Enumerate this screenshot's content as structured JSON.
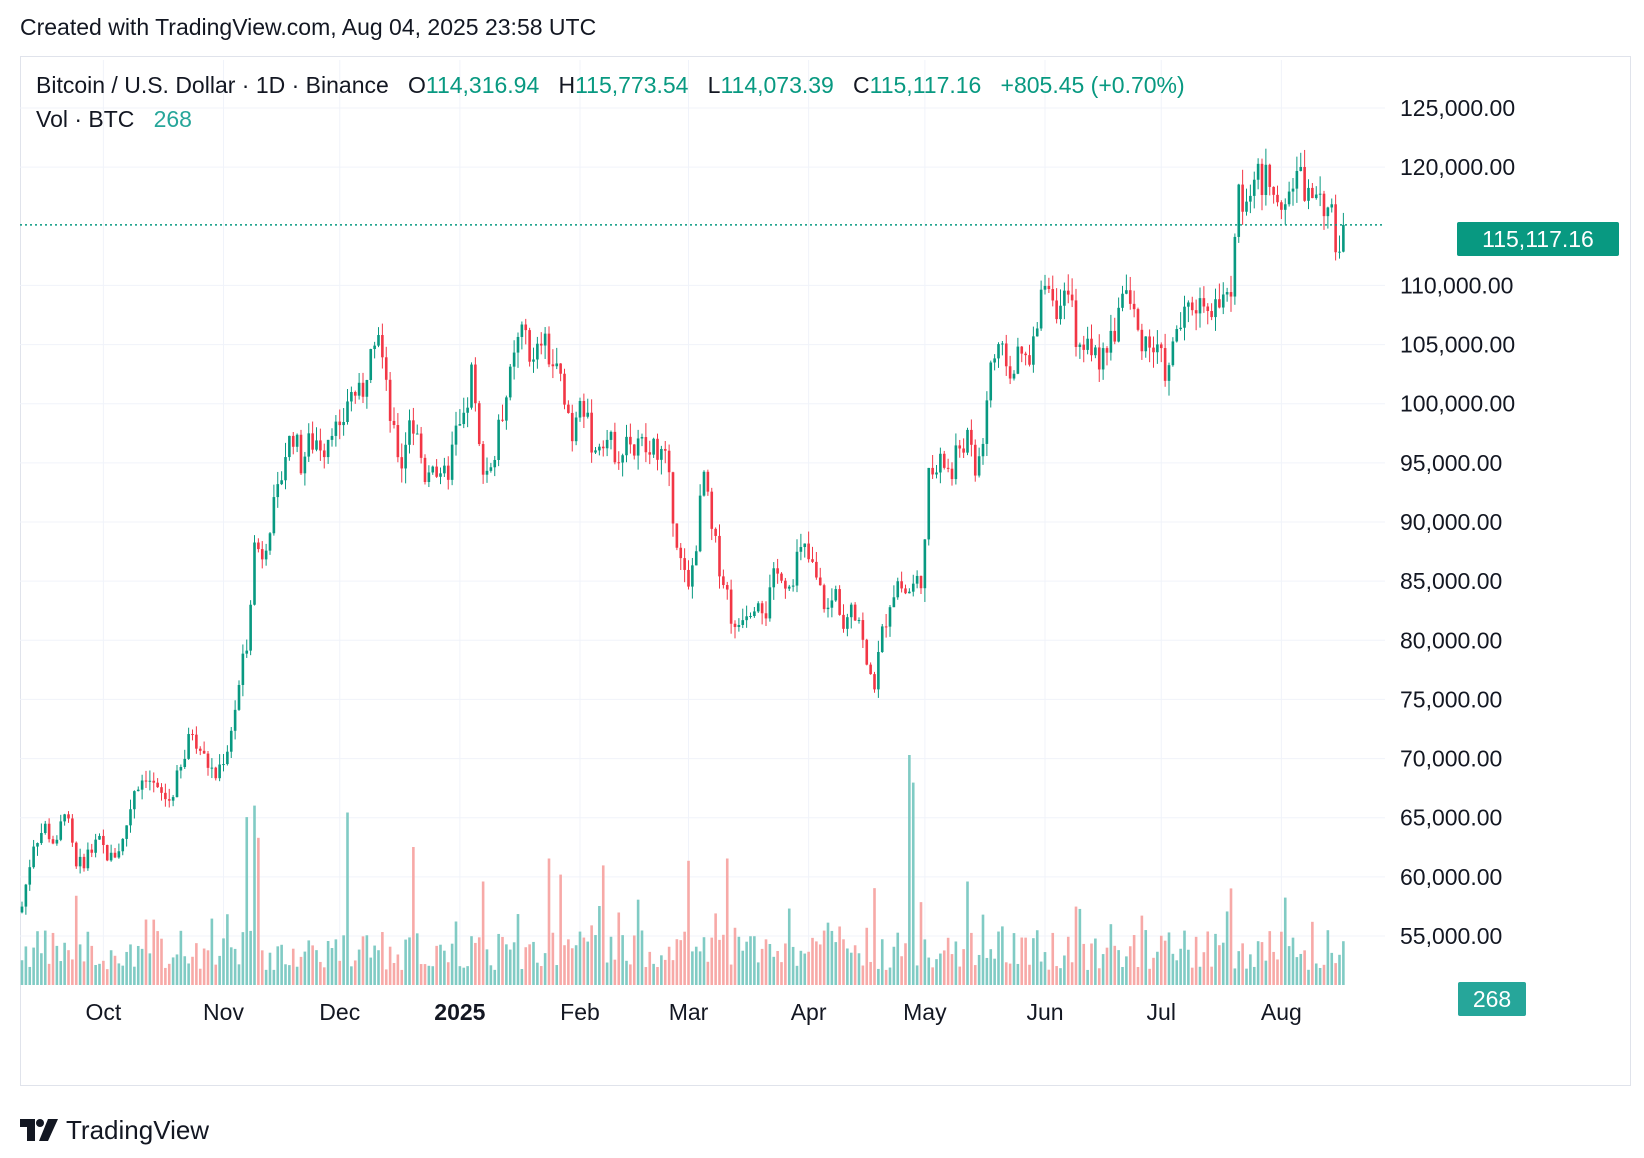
{
  "header": {
    "created_text": "Created with TradingView.com, Aug 04, 2025 23:58 UTC"
  },
  "legend": {
    "symbol": "Bitcoin / U.S. Dollar · 1D · Binance",
    "o_label": "O",
    "o_value": "114,316.94",
    "h_label": "H",
    "h_value": "115,773.54",
    "l_label": "L",
    "l_value": "114,073.39",
    "c_label": "C",
    "c_value": "115,117.16",
    "change": "+805.45 (+0.70%)",
    "vol_label": "Vol · BTC",
    "vol_value": "268"
  },
  "price_tag": "115,117.16",
  "volume_tag": "268",
  "brand": {
    "name": "TradingView"
  },
  "colors": {
    "up": "#089981",
    "down": "#f23645",
    "vol_up": "#80cbc4",
    "vol_down": "#f7a9a7",
    "grid": "#f0f3fa"
  },
  "chart_data": {
    "type": "candlestick",
    "title": "Bitcoin / U.S. Dollar · 1D · Binance",
    "y_ticks": [
      "125,000.00",
      "120,000.00",
      "110,000.00",
      "105,000.00",
      "100,000.00",
      "95,000.00",
      "90,000.00",
      "85,000.00",
      "80,000.00",
      "75,000.00",
      "70,000.00",
      "65,000.00",
      "60,000.00",
      "55,000.00"
    ],
    "y_tick_values": [
      125000,
      120000,
      110000,
      105000,
      100000,
      95000,
      90000,
      85000,
      80000,
      75000,
      70000,
      65000,
      60000,
      55000
    ],
    "ylim": [
      53000,
      127500
    ],
    "x_ticks": [
      {
        "label": "Oct",
        "index": 0,
        "bold": false
      },
      {
        "label": "Nov",
        "index": 1,
        "bold": false
      },
      {
        "label": "Dec",
        "index": 2,
        "bold": false
      },
      {
        "label": "2025",
        "index": 3,
        "bold": true
      },
      {
        "label": "Feb",
        "index": 4,
        "bold": false
      },
      {
        "label": "Mar",
        "index": 5,
        "bold": false
      },
      {
        "label": "Apr",
        "index": 6,
        "bold": false
      },
      {
        "label": "May",
        "index": 7,
        "bold": false
      },
      {
        "label": "Jun",
        "index": 8,
        "bold": false
      },
      {
        "label": "Jul",
        "index": 9,
        "bold": false
      },
      {
        "label": "Aug",
        "index": 10,
        "bold": false
      }
    ],
    "x_tick_day": [
      21,
      52,
      82,
      113,
      144,
      172,
      203,
      233,
      264,
      294,
      325
    ],
    "last_close": 115117.16,
    "close_path": [
      [
        0,
        57500
      ],
      [
        3,
        63000
      ],
      [
        6,
        64200
      ],
      [
        9,
        62500
      ],
      [
        11,
        66000
      ],
      [
        14,
        60500
      ],
      [
        17,
        62000
      ],
      [
        20,
        62800
      ],
      [
        23,
        61500
      ],
      [
        26,
        63000
      ],
      [
        29,
        67500
      ],
      [
        32,
        68800
      ],
      [
        35,
        67000
      ],
      [
        38,
        66500
      ],
      [
        41,
        69000
      ],
      [
        44,
        72500
      ],
      [
        47,
        70000
      ],
      [
        50,
        68500
      ],
      [
        53,
        71000
      ],
      [
        56,
        76000
      ],
      [
        58,
        80000
      ],
      [
        60,
        88000
      ],
      [
        62,
        87500
      ],
      [
        64,
        90000
      ],
      [
        66,
        92000
      ],
      [
        68,
        96000
      ],
      [
        70,
        97500
      ],
      [
        72,
        95000
      ],
      [
        74,
        96500
      ],
      [
        76,
        97000
      ],
      [
        78,
        96500
      ],
      [
        80,
        98500
      ],
      [
        82,
        97000
      ],
      [
        84,
        100500
      ],
      [
        86,
        101000
      ],
      [
        88,
        100000
      ],
      [
        90,
        106000
      ],
      [
        92,
        106500
      ],
      [
        94,
        101000
      ],
      [
        96,
        97000
      ],
      [
        98,
        95000
      ],
      [
        100,
        99000
      ],
      [
        102,
        97000
      ],
      [
        104,
        94000
      ],
      [
        106,
        95500
      ],
      [
        108,
        93000
      ],
      [
        110,
        94500
      ],
      [
        112,
        97500
      ],
      [
        114,
        98000
      ],
      [
        116,
        102500
      ],
      [
        118,
        96000
      ],
      [
        120,
        94500
      ],
      [
        122,
        95500
      ],
      [
        124,
        99500
      ],
      [
        126,
        102000
      ],
      [
        128,
        105000
      ],
      [
        130,
        106000
      ],
      [
        132,
        103000
      ],
      [
        134,
        105500
      ],
      [
        136,
        104000
      ],
      [
        138,
        102500
      ],
      [
        140,
        101000
      ],
      [
        142,
        97500
      ],
      [
        144,
        101500
      ],
      [
        146,
        98000
      ],
      [
        148,
        96000
      ],
      [
        150,
        97500
      ],
      [
        152,
        96500
      ],
      [
        154,
        96000
      ],
      [
        156,
        97500
      ],
      [
        158,
        96000
      ],
      [
        160,
        96500
      ],
      [
        162,
        95500
      ],
      [
        164,
        96500
      ],
      [
        166,
        95000
      ],
      [
        168,
        91000
      ],
      [
        170,
        86500
      ],
      [
        172,
        84000
      ],
      [
        174,
        88500
      ],
      [
        176,
        94000
      ],
      [
        178,
        89000
      ],
      [
        180,
        86500
      ],
      [
        182,
        84000
      ],
      [
        184,
        80500
      ],
      [
        186,
        82500
      ],
      [
        188,
        83000
      ],
      [
        190,
        84000
      ],
      [
        192,
        82500
      ],
      [
        194,
        85000
      ],
      [
        196,
        86000
      ],
      [
        198,
        84500
      ],
      [
        200,
        87000
      ],
      [
        202,
        87500
      ],
      [
        204,
        86000
      ],
      [
        206,
        84000
      ],
      [
        208,
        82500
      ],
      [
        210,
        84000
      ],
      [
        212,
        82000
      ],
      [
        214,
        83500
      ],
      [
        216,
        82000
      ],
      [
        218,
        77500
      ],
      [
        220,
        76500
      ],
      [
        222,
        80500
      ],
      [
        224,
        83500
      ],
      [
        226,
        85000
      ],
      [
        228,
        84000
      ],
      [
        230,
        84500
      ],
      [
        232,
        85500
      ],
      [
        234,
        93500
      ],
      [
        236,
        94500
      ],
      [
        238,
        95000
      ],
      [
        240,
        94000
      ],
      [
        242,
        96500
      ],
      [
        244,
        97000
      ],
      [
        246,
        94000
      ],
      [
        248,
        97000
      ],
      [
        250,
        103500
      ],
      [
        252,
        104000
      ],
      [
        254,
        103500
      ],
      [
        256,
        103000
      ],
      [
        258,
        104000
      ],
      [
        260,
        103000
      ],
      [
        262,
        106500
      ],
      [
        264,
        111000
      ],
      [
        266,
        109500
      ],
      [
        268,
        107500
      ],
      [
        270,
        109000
      ],
      [
        272,
        106000
      ],
      [
        274,
        104500
      ],
      [
        276,
        105000
      ],
      [
        278,
        103000
      ],
      [
        280,
        105000
      ],
      [
        282,
        106000
      ],
      [
        284,
        110000
      ],
      [
        286,
        108500
      ],
      [
        288,
        106000
      ],
      [
        290,
        105500
      ],
      [
        292,
        104500
      ],
      [
        294,
        103500
      ],
      [
        296,
        102500
      ],
      [
        298,
        106500
      ],
      [
        300,
        107000
      ],
      [
        302,
        108500
      ],
      [
        304,
        108500
      ],
      [
        306,
        109000
      ],
      [
        308,
        108000
      ],
      [
        310,
        108500
      ],
      [
        312,
        109500
      ],
      [
        314,
        117500
      ],
      [
        316,
        118000
      ],
      [
        318,
        119500
      ],
      [
        320,
        118000
      ],
      [
        322,
        119500
      ],
      [
        324,
        118000
      ],
      [
        326,
        117500
      ],
      [
        328,
        118500
      ],
      [
        330,
        119000
      ],
      [
        332,
        117500
      ],
      [
        334,
        118500
      ],
      [
        336,
        117000
      ],
      [
        338,
        115500
      ],
      [
        339,
        113000
      ],
      [
        340,
        114000
      ],
      [
        341,
        115117
      ]
    ],
    "volume_spikes": [
      {
        "day": 229,
        "value": 100
      },
      {
        "day": 230,
        "value": 88
      },
      {
        "day": 58,
        "value": 73
      },
      {
        "day": 60,
        "value": 78
      },
      {
        "day": 84,
        "value": 75
      },
      {
        "day": 61,
        "value": 64
      },
      {
        "day": 101,
        "value": 60
      },
      {
        "day": 182,
        "value": 55
      },
      {
        "day": 172,
        "value": 54
      },
      {
        "day": 139,
        "value": 48
      },
      {
        "day": 150,
        "value": 52
      },
      {
        "day": 136,
        "value": 55
      },
      {
        "day": 119,
        "value": 45
      },
      {
        "day": 244,
        "value": 45
      },
      {
        "day": 312,
        "value": 42
      },
      {
        "day": 326,
        "value": 38
      }
    ]
  }
}
